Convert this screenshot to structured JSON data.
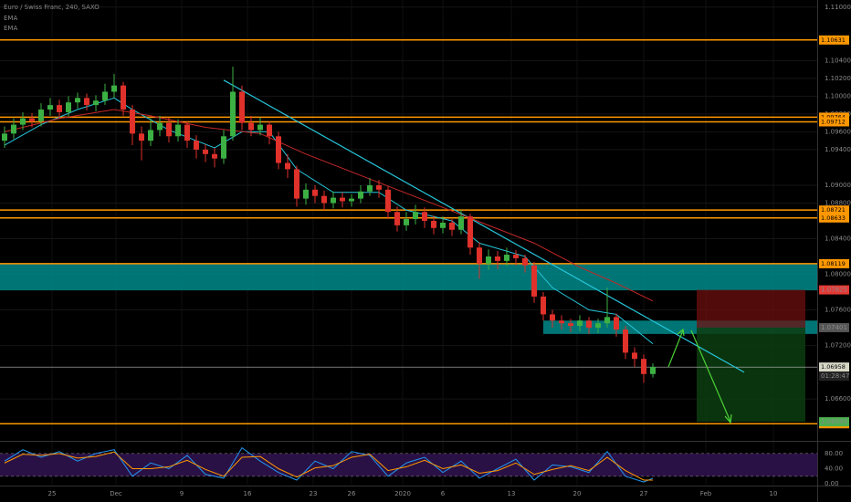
{
  "chart_data": {
    "type": "candlestick",
    "title": "Euro / Swiss Franc, 240, SAXO",
    "indicators": [
      "EMA",
      "EMA"
    ],
    "grid": true,
    "up_color": "#3cb043",
    "down_color": "#e0312b",
    "xlim": [
      -0.5,
      89
    ],
    "xticks": [
      {
        "value": 5.2,
        "label": "25"
      },
      {
        "value": 12.2,
        "label": "Dec"
      },
      {
        "value": 19.4,
        "label": "9"
      },
      {
        "value": 26.6,
        "label": "16"
      },
      {
        "value": 33.8,
        "label": "23"
      },
      {
        "value": 38,
        "label": "26"
      },
      {
        "value": 43.6,
        "label": "2020"
      },
      {
        "value": 48,
        "label": "6"
      },
      {
        "value": 55.5,
        "label": "13"
      },
      {
        "value": 62.7,
        "label": "20"
      },
      {
        "value": 70,
        "label": "27"
      },
      {
        "value": 76.8,
        "label": "Feb"
      },
      {
        "value": 84.2,
        "label": "10"
      }
    ],
    "ylim": [
      1.0614,
      1.1108
    ],
    "yticks": [
      {
        "value": 1.11,
        "label": "1.11000"
      },
      {
        "value": 1.104,
        "label": "1.10400"
      },
      {
        "value": 1.102,
        "label": "1.10200"
      },
      {
        "value": 1.1,
        "label": "1.10000"
      },
      {
        "value": 1.098,
        "label": "1.09800"
      },
      {
        "value": 1.096,
        "label": "1.09600"
      },
      {
        "value": 1.094,
        "label": "1.09400"
      },
      {
        "value": 1.09,
        "label": "1.09000"
      },
      {
        "value": 1.088,
        "label": "1.08800"
      },
      {
        "value": 1.084,
        "label": "1.08400"
      },
      {
        "value": 1.08,
        "label": "1.08000"
      },
      {
        "value": 1.076,
        "label": "1.07600"
      },
      {
        "value": 1.072,
        "label": "1.07200"
      },
      {
        "value": 1.066,
        "label": "1.06600"
      }
    ],
    "open": [
      1.095,
      1.0958,
      1.0968,
      1.0975,
      1.0972,
      1.0985,
      1.099,
      1.0982,
      1.0993,
      1.0998,
      1.099,
      1.0995,
      1.1005,
      1.1012,
      1.0985,
      1.0958,
      1.095,
      1.0962,
      1.097,
      1.0955,
      1.0968,
      1.095,
      1.094,
      1.0935,
      1.093,
      1.0955,
      1.1005,
      1.097,
      1.0962,
      1.0968,
      1.0955,
      1.0925,
      1.0918,
      1.0885,
      1.0895,
      1.0888,
      1.088,
      1.0886,
      1.0882,
      1.0885,
      1.0893,
      1.09,
      1.0895,
      1.087,
      1.0855,
      1.0862,
      1.087,
      1.086,
      1.0852,
      1.0858,
      1.085,
      1.0865,
      1.083,
      1.0812,
      1.082,
      1.0815,
      1.0822,
      1.0818,
      1.081,
      1.0775,
      1.0755,
      1.0748,
      1.0745,
      1.0742,
      1.0748,
      1.074,
      1.0745,
      1.0752,
      1.0738,
      1.0712,
      1.0705,
      1.0688
    ],
    "high": [
      1.0966,
      1.0975,
      1.0982,
      1.0981,
      1.0992,
      1.0998,
      1.0996,
      1.1,
      1.1004,
      1.1003,
      1.1001,
      1.1014,
      1.1025,
      1.1016,
      1.099,
      1.0966,
      1.0975,
      1.0978,
      1.0976,
      1.0974,
      1.0972,
      1.0956,
      1.0946,
      1.0942,
      1.0962,
      1.1033,
      1.1012,
      1.0978,
      1.0976,
      1.0972,
      1.096,
      1.0935,
      1.0922,
      1.0902,
      1.09,
      1.0894,
      1.0893,
      1.0892,
      1.089,
      1.09,
      1.0908,
      1.0906,
      1.0899,
      1.0876,
      1.087,
      1.0878,
      1.0875,
      1.0866,
      1.0865,
      1.0862,
      1.0872,
      1.0868,
      1.0836,
      1.0828,
      1.0826,
      1.083,
      1.0827,
      1.0822,
      1.0814,
      1.078,
      1.076,
      1.0754,
      1.075,
      1.0754,
      1.0752,
      1.075,
      1.0785,
      1.0756,
      1.0742,
      1.0718,
      1.071,
      1.07
    ],
    "low": [
      1.0942,
      1.0952,
      1.0962,
      1.0965,
      1.0966,
      1.0978,
      1.0975,
      1.0977,
      1.0986,
      1.0984,
      1.0983,
      1.099,
      1.0998,
      1.0978,
      1.0945,
      1.0928,
      1.0944,
      1.0955,
      1.0948,
      1.0949,
      1.0942,
      1.093,
      1.0926,
      1.092,
      1.0924,
      1.095,
      1.0962,
      1.0955,
      1.0956,
      1.0946,
      1.0918,
      1.0908,
      1.0876,
      1.0878,
      1.088,
      1.0872,
      1.0874,
      1.0875,
      1.0876,
      1.088,
      1.0888,
      1.0886,
      1.0862,
      1.0848,
      1.0849,
      1.0856,
      1.0852,
      1.0845,
      1.0846,
      1.0843,
      1.0845,
      1.0822,
      1.0795,
      1.0805,
      1.0806,
      1.0809,
      1.081,
      1.0802,
      1.0768,
      1.0748,
      1.074,
      1.0738,
      1.0735,
      1.0736,
      1.0733,
      1.0734,
      1.074,
      1.073,
      1.0705,
      1.0696,
      1.0678,
      1.0684
    ],
    "close": [
      1.0958,
      1.0968,
      1.0975,
      1.0972,
      1.0985,
      1.099,
      1.0982,
      1.0993,
      1.0998,
      1.099,
      1.0995,
      1.1005,
      1.1012,
      1.0985,
      1.0958,
      1.095,
      1.0962,
      1.097,
      1.0955,
      1.0968,
      1.095,
      1.094,
      1.0935,
      1.093,
      1.0955,
      1.1005,
      1.097,
      1.0962,
      1.0968,
      1.0955,
      1.0925,
      1.0918,
      1.0885,
      1.0895,
      1.0888,
      1.088,
      1.0886,
      1.0882,
      1.0885,
      1.0893,
      1.09,
      1.0895,
      1.087,
      1.0855,
      1.0862,
      1.087,
      1.086,
      1.0852,
      1.0858,
      1.085,
      1.0865,
      1.083,
      1.0812,
      1.082,
      1.0815,
      1.0822,
      1.0818,
      1.081,
      1.0775,
      1.0755,
      1.0748,
      1.0745,
      1.0742,
      1.0748,
      1.074,
      1.0745,
      1.0752,
      1.0738,
      1.0712,
      1.0705,
      1.0688,
      1.0696
    ],
    "overlays": [
      {
        "color": "#26c6da",
        "x": [
          0,
          4,
          8,
          12,
          14,
          18,
          23,
          26,
          29,
          32,
          36,
          41,
          44,
          49,
          52,
          57,
          60,
          64,
          67,
          71
        ],
        "values": [
          1.0945,
          1.0968,
          1.0985,
          1.0998,
          1.0985,
          1.0962,
          1.0942,
          1.096,
          1.096,
          1.0918,
          1.0892,
          1.0892,
          1.0872,
          1.086,
          1.0835,
          1.082,
          1.0785,
          1.076,
          1.0755,
          1.0722
        ]
      },
      {
        "color": "#c62828",
        "x": [
          0,
          6,
          12,
          16,
          22,
          28,
          33,
          38,
          43,
          48,
          53,
          58,
          63,
          67,
          71
        ],
        "values": [
          1.096,
          1.0975,
          1.0985,
          1.0978,
          1.0965,
          1.0958,
          1.0935,
          1.0915,
          1.0895,
          1.0875,
          1.0855,
          1.0835,
          1.0808,
          1.079,
          1.077
        ]
      }
    ],
    "zones": [
      {
        "low": 1.0782,
        "high": 1.0812,
        "color": "#00898a"
      },
      {
        "low": 1.0733,
        "high": 1.0748,
        "from": 59,
        "color": "#00898a"
      }
    ],
    "trendline": {
      "x": [
        24,
        81
      ],
      "values": [
        1.1018,
        1.069
      ],
      "color": "#26c6da"
    },
    "levels": [
      {
        "value": 1.10631,
        "color": "#ff9800"
      },
      {
        "value": 1.09764,
        "color": "#ff9800"
      },
      {
        "value": 1.09712,
        "color": "#ff9800"
      },
      {
        "value": 1.08721,
        "color": "#ff9800"
      },
      {
        "value": 1.08633,
        "color": "#ff9800"
      },
      {
        "value": 1.08119,
        "color": "#ff9800"
      },
      {
        "value": 1.06322,
        "color": "#ff9800"
      }
    ],
    "position": {
      "stop": 1.07825,
      "entry": 1.07401,
      "target": 1.06344,
      "from": 75.8,
      "to": 87.7
    },
    "last_price": 1.06958,
    "countdown": "01:28:47",
    "oscillator": {
      "ylim": [
        -2,
        106
      ],
      "yticks": [
        {
          "value": 80,
          "label": "80.00"
        },
        {
          "value": 40,
          "label": "40.00"
        },
        {
          "value": 0,
          "label": "0.00"
        }
      ],
      "band": [
        20,
        80
      ],
      "series": [
        {
          "color": "#2196f3",
          "x": [
            0,
            2,
            4,
            6,
            8,
            10,
            12,
            14,
            16,
            18,
            20,
            22,
            24,
            26,
            28,
            30,
            32,
            34,
            36,
            38,
            40,
            42,
            44,
            46,
            48,
            50,
            52,
            54,
            56,
            58,
            60,
            62,
            64,
            66,
            68,
            70,
            71
          ],
          "values": [
            60,
            90,
            70,
            85,
            60,
            80,
            90,
            20,
            55,
            40,
            75,
            25,
            15,
            95,
            60,
            30,
            10,
            60,
            40,
            85,
            75,
            20,
            55,
            70,
            30,
            60,
            15,
            40,
            65,
            10,
            50,
            45,
            30,
            85,
            20,
            5,
            15
          ]
        },
        {
          "color": "#ff9800",
          "x": [
            0,
            2,
            4,
            6,
            8,
            10,
            12,
            14,
            16,
            18,
            20,
            22,
            24,
            26,
            28,
            30,
            32,
            34,
            36,
            38,
            40,
            42,
            44,
            46,
            48,
            50,
            52,
            54,
            56,
            58,
            60,
            62,
            64,
            66,
            68,
            70,
            71
          ],
          "values": [
            55,
            78,
            75,
            80,
            68,
            72,
            84,
            40,
            40,
            45,
            62,
            38,
            20,
            70,
            72,
            40,
            18,
            42,
            48,
            70,
            78,
            35,
            45,
            62,
            40,
            50,
            28,
            35,
            55,
            25,
            38,
            48,
            35,
            70,
            35,
            10,
            10
          ]
        }
      ]
    }
  }
}
